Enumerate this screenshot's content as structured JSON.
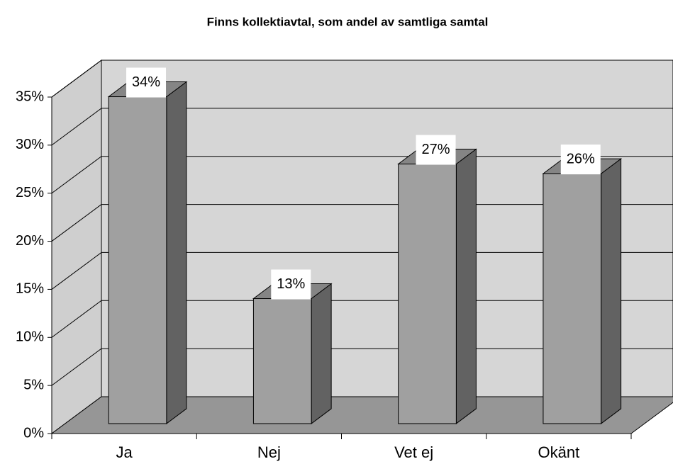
{
  "chart_data": {
    "type": "bar3d",
    "title": "Finns kollektiavtal, som andel av samtliga samtal",
    "categories": [
      "Ja",
      "Nej",
      "Vet ej",
      "Okänt"
    ],
    "values": [
      34,
      13,
      27,
      26
    ],
    "value_labels": [
      "34%",
      "13%",
      "27%",
      "26%"
    ],
    "color": "#a0a0a0",
    "ylim": [
      0,
      35
    ],
    "yticks": [
      {
        "value": 0,
        "label": "0%"
      },
      {
        "value": 5,
        "label": "5%"
      },
      {
        "value": 10,
        "label": "10%"
      },
      {
        "value": 15,
        "label": "15%"
      },
      {
        "value": 20,
        "label": "20%"
      },
      {
        "value": 25,
        "label": "25%"
      },
      {
        "value": 30,
        "label": "30%"
      },
      {
        "value": 35,
        "label": "35%"
      }
    ],
    "grid": true
  }
}
